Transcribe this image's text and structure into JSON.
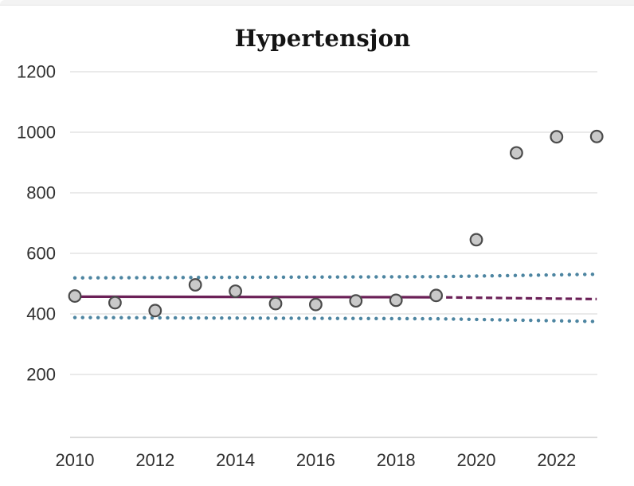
{
  "window": {
    "top_strip_color": "#f3f3f3"
  },
  "chart_data": {
    "type": "scatter",
    "title": "Hypertensjon",
    "xlabel": "",
    "ylabel": "",
    "x": [
      2010,
      2011,
      2012,
      2013,
      2014,
      2015,
      2016,
      2017,
      2018,
      2019,
      2020,
      2021,
      2022,
      2023
    ],
    "x_ticks": [
      2010,
      2012,
      2014,
      2016,
      2018,
      2020,
      2022
    ],
    "y_ticks": [
      200,
      400,
      600,
      800,
      1000,
      1200
    ],
    "ylim": [
      0,
      1300
    ],
    "xlim": [
      2009.8,
      2023.2
    ],
    "grid": "horizontal",
    "legend": "none",
    "series": [
      {
        "name": "prediction-band-upper",
        "type": "line",
        "dash": "dotted",
        "color": "#4d85a1",
        "x": [
          2010,
          2019,
          2023
        ],
        "values": [
          519,
          523,
          531
        ]
      },
      {
        "name": "prediction-band-lower",
        "type": "line",
        "dash": "dotted",
        "color": "#4d85a1",
        "x": [
          2010,
          2019,
          2023
        ],
        "values": [
          388,
          384,
          375
        ]
      },
      {
        "name": "trend-fit",
        "type": "line",
        "dash": "solid",
        "color": "#6b2057",
        "x": [
          2010,
          2019
        ],
        "values": [
          457,
          455
        ]
      },
      {
        "name": "trend-forecast",
        "type": "line",
        "dash": "dashed",
        "color": "#6b2057",
        "x": [
          2019,
          2023
        ],
        "values": [
          455,
          449
        ]
      },
      {
        "name": "observed-points",
        "type": "scatter",
        "marker_fill": "#c9c9c9",
        "marker_stroke": "#4b4b4b",
        "values": [
          459,
          437,
          411,
          496,
          475,
          434,
          431,
          443,
          445,
          461,
          645,
          932,
          985,
          986
        ]
      }
    ]
  },
  "colors": {
    "grid": "#dedede",
    "axis": "#c6c6c6",
    "tick_text": "#303030",
    "title_text": "#141414",
    "background": "#ffffff"
  }
}
